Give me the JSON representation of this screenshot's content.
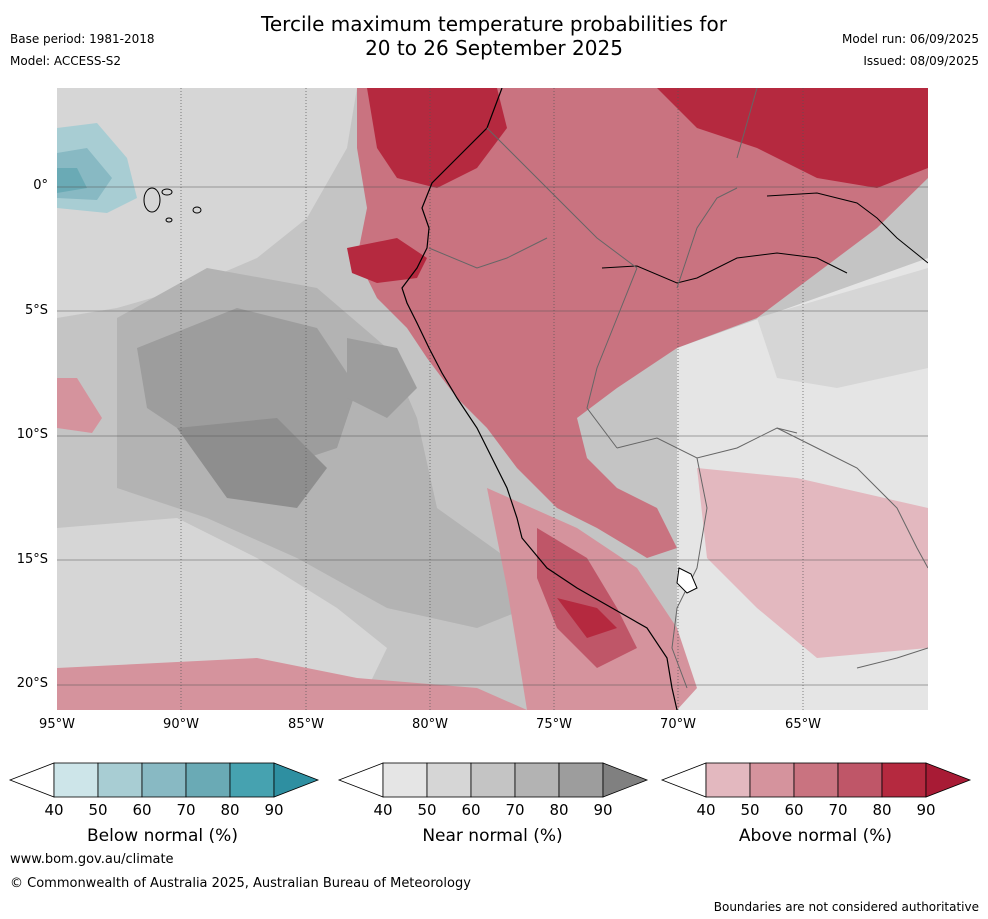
{
  "header": {
    "title_line1": "Tercile maximum temperature probabilities for",
    "title_line2": "20 to 26 September 2025",
    "base_period": "Base period: 1981-2018",
    "model": "Model: ACCESS-S2",
    "model_run": "Model run: 06/09/2025",
    "issued": "Issued: 08/09/2025"
  },
  "map": {
    "lat_labels": [
      "0°",
      "5°S",
      "10°S",
      "15°S",
      "20°S"
    ],
    "lon_labels": [
      "95°W",
      "90°W",
      "85°W",
      "80°W",
      "75°W",
      "70°W",
      "65°W"
    ]
  },
  "legend": {
    "ticks": [
      "40",
      "50",
      "60",
      "70",
      "80",
      "90"
    ],
    "below": {
      "label": "Below normal (%)",
      "colors": [
        "#cde5e9",
        "#a8cdd3",
        "#88b9c3",
        "#6aaab5",
        "#46a2b0",
        "#2e8fa1"
      ]
    },
    "near": {
      "label": "Near normal (%)",
      "colors": [
        "#e5e5e5",
        "#d6d6d6",
        "#c4c4c4",
        "#b3b3b3",
        "#9d9d9d",
        "#808080"
      ]
    },
    "above": {
      "label": "Above normal (%)",
      "colors": [
        "#e3b8bf",
        "#d5939d",
        "#c97380",
        "#bf5668",
        "#b5293f",
        "#a81b35"
      ]
    }
  },
  "footer": {
    "url": "www.bom.gov.au/climate",
    "copyright": "© Commonwealth of Australia 2025, Australian Bureau of Meteorology",
    "disclaimer": "Boundaries are not considered authoritative"
  }
}
